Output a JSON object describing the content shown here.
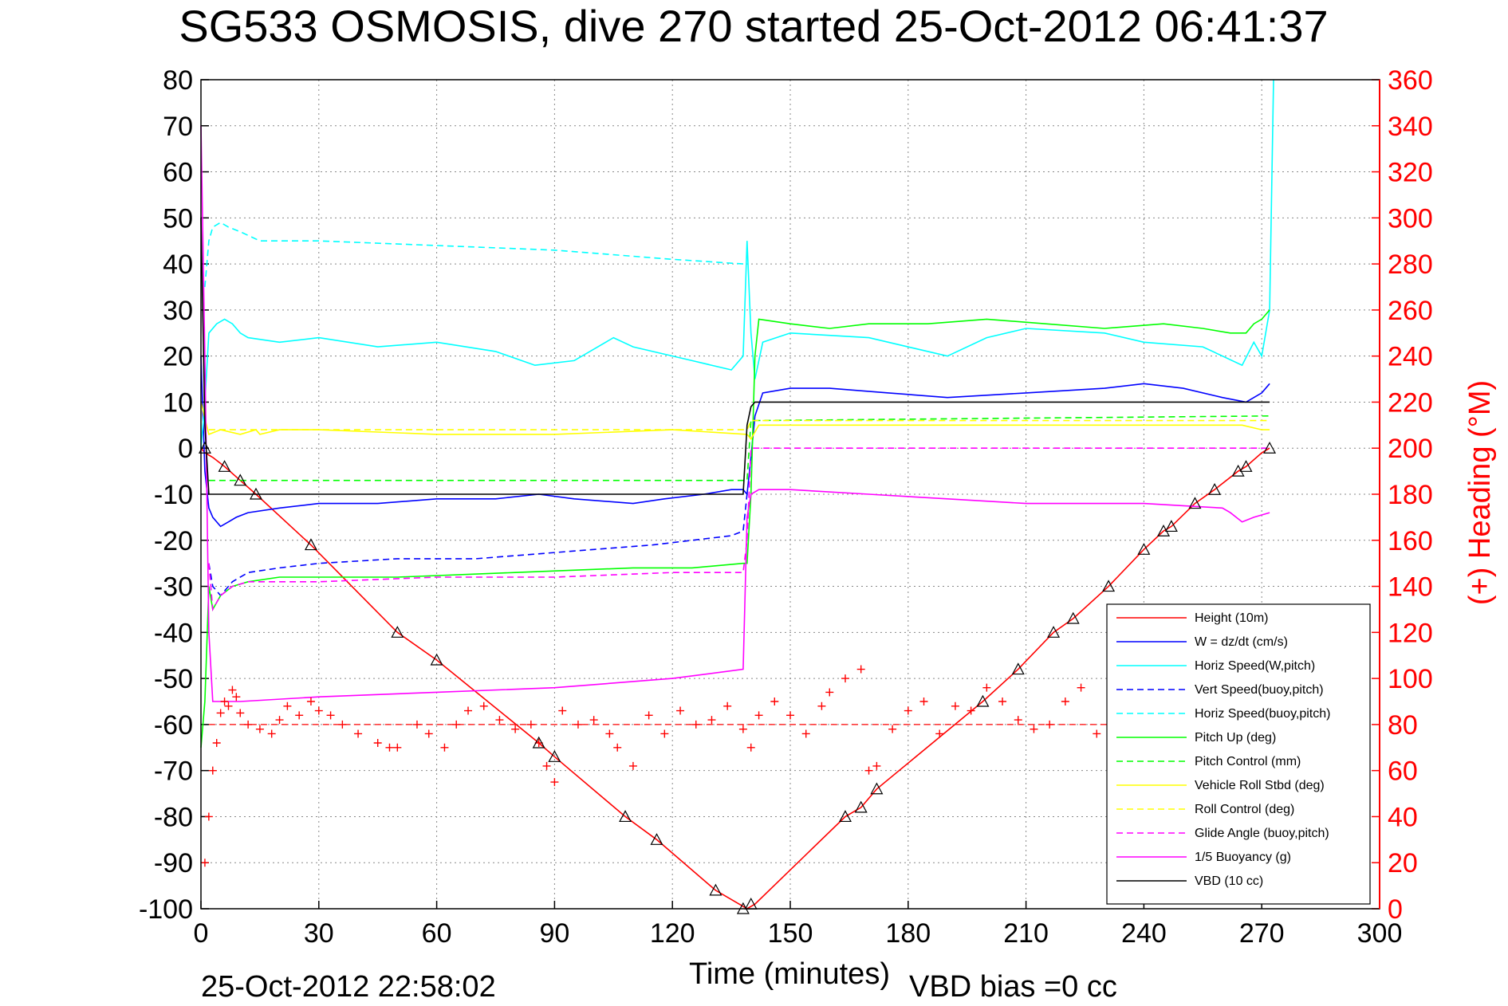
{
  "title": "SG533 OSMOSIS, dive 270 started 25-Oct-2012 06:41:37",
  "footer_date": "25-Oct-2012 22:58:02",
  "vbd_bias": "VBD bias =0 cc",
  "chart_data": {
    "type": "line",
    "xlabel": "Time (minutes)",
    "ylabel": "",
    "y2label": "(+) Heading (°M)",
    "xlim": [
      0,
      300
    ],
    "ylim": [
      -100,
      80
    ],
    "y2lim": [
      0,
      360
    ],
    "xticks": [
      0,
      30,
      60,
      90,
      120,
      150,
      180,
      210,
      240,
      270,
      300
    ],
    "yticks": [
      80,
      70,
      60,
      50,
      40,
      30,
      20,
      10,
      0,
      -10,
      -20,
      -30,
      -40,
      -50,
      -60,
      -70,
      -80,
      -90,
      -100
    ],
    "y2ticks": [
      360,
      340,
      320,
      300,
      280,
      260,
      240,
      220,
      200,
      180,
      160,
      140,
      120,
      100,
      80,
      60,
      40,
      20,
      0
    ],
    "grid": true,
    "legend_position": "lower-right",
    "colors": {
      "red": "#ff0000",
      "blue": "#0000ff",
      "cyan": "#00ffff",
      "green": "#00ff00",
      "yellow": "#ffff00",
      "magenta": "#ff00ff",
      "black": "#000000"
    },
    "series": [
      {
        "name": "Height (10m)",
        "color": "#ff0000",
        "style": "solid",
        "x": [
          0,
          1,
          3,
          6,
          10,
          14,
          28,
          50,
          60,
          86,
          90,
          108,
          116,
          131,
          137,
          139,
          141,
          164,
          168,
          172,
          199,
          208,
          217,
          222,
          231,
          240,
          245,
          247,
          253,
          258,
          264,
          266,
          270,
          272
        ],
        "y": [
          0,
          -1,
          -2,
          -4,
          -7,
          -10,
          -21,
          -40,
          -46,
          -64,
          -67,
          -80,
          -85,
          -96,
          -99,
          -100,
          -99,
          -80,
          -78,
          -74,
          -55,
          -48,
          -40,
          -37,
          -30,
          -22,
          -18,
          -17,
          -12,
          -9,
          -5,
          -4,
          -1,
          0
        ]
      },
      {
        "name": "W = dz/dt (cm/s)",
        "color": "#0000ff",
        "style": "solid",
        "x": [
          0,
          1,
          2,
          3,
          5,
          7,
          9,
          12,
          20,
          30,
          45,
          60,
          75,
          86,
          95,
          110,
          118,
          128,
          135,
          138,
          139,
          140,
          141,
          143,
          150,
          160,
          175,
          190,
          210,
          230,
          240,
          250,
          260,
          266,
          268,
          270,
          272
        ],
        "y": [
          20,
          -5,
          -13,
          -15,
          -17,
          -16,
          -15,
          -14,
          -13,
          -12,
          -12,
          -11,
          -11,
          -10,
          -11,
          -12,
          -11,
          -10,
          -9,
          -9,
          -10,
          -2,
          7,
          12,
          13,
          13,
          12,
          11,
          12,
          13,
          14,
          13,
          11,
          10,
          11,
          12,
          14
        ]
      },
      {
        "name": "Horiz Speed(W,pitch)",
        "color": "#00ffff",
        "style": "solid",
        "x": [
          0,
          1,
          2,
          4,
          6,
          8,
          10,
          12,
          20,
          30,
          45,
          60,
          75,
          85,
          95,
          105,
          110,
          125,
          135,
          138,
          139,
          140,
          141,
          143,
          150,
          170,
          190,
          200,
          210,
          230,
          240,
          255,
          265,
          268,
          270,
          272,
          273
        ],
        "y": [
          0,
          10,
          25,
          27,
          28,
          27,
          25,
          24,
          23,
          24,
          22,
          23,
          21,
          18,
          19,
          24,
          22,
          19,
          17,
          20,
          45,
          25,
          15,
          23,
          25,
          24,
          20,
          24,
          26,
          25,
          23,
          22,
          18,
          23,
          20,
          30,
          80
        ]
      },
      {
        "name": "Vert Speed(buoy,pitch)",
        "color": "#0000ff",
        "style": "dashed",
        "x": [
          2,
          3,
          5,
          8,
          12,
          20,
          30,
          50,
          70,
          85,
          100,
          115,
          125,
          135,
          138,
          139
        ],
        "y": [
          -25,
          -30,
          -32,
          -29,
          -27,
          -26,
          -25,
          -24,
          -24,
          -23,
          -22,
          -21,
          -20,
          -19,
          -18,
          -10
        ]
      },
      {
        "name": "Horiz Speed(buoy,pitch)",
        "color": "#00ffff",
        "style": "dashed",
        "x": [
          1,
          2,
          3,
          5,
          7,
          10,
          15,
          30,
          60,
          90,
          120,
          138
        ],
        "y": [
          35,
          45,
          48,
          49,
          48,
          47,
          45,
          45,
          44,
          43,
          41,
          40
        ]
      },
      {
        "name": "Pitch Up (deg)",
        "color": "#00ff00",
        "style": "solid",
        "x": [
          0,
          1,
          2,
          3,
          5,
          8,
          12,
          20,
          30,
          50,
          80,
          110,
          125,
          138,
          139,
          140,
          141,
          142,
          150,
          160,
          170,
          185,
          200,
          215,
          230,
          245,
          255,
          262,
          266,
          268,
          270,
          272
        ],
        "y": [
          -65,
          -55,
          -30,
          -35,
          -32,
          -30,
          -29,
          -28,
          -28,
          -28,
          -27,
          -26,
          -26,
          -25,
          -25,
          -10,
          20,
          28,
          27,
          26,
          27,
          27,
          28,
          27,
          26,
          27,
          26,
          25,
          25,
          27,
          28,
          30
        ]
      },
      {
        "name": "Pitch Control (mm)",
        "color": "#00ff00",
        "style": "dashed",
        "x": [
          2,
          139,
          140,
          272
        ],
        "y": [
          -7,
          -7,
          6,
          7
        ]
      },
      {
        "name": "Vehicle Roll Stbd (deg)",
        "color": "#ffff00",
        "style": "solid",
        "x": [
          0,
          2,
          5,
          10,
          14,
          15,
          20,
          30,
          60,
          90,
          120,
          139,
          140,
          142,
          160,
          200,
          240,
          265,
          270,
          272
        ],
        "y": [
          10,
          3,
          4,
          3,
          4,
          3,
          4,
          4,
          3,
          3,
          4,
          3,
          2,
          5,
          5,
          5,
          5,
          5,
          4,
          4
        ]
      },
      {
        "name": "Roll Control (deg)",
        "color": "#ffff00",
        "style": "dashed",
        "x": [
          2,
          139,
          140,
          272
        ],
        "y": [
          4,
          4,
          6,
          6
        ]
      },
      {
        "name": "Glide Angle (buoy,pitch)",
        "color": "#ff00ff",
        "style": "dashed",
        "x": [
          2,
          3,
          5,
          8,
          12,
          20,
          30,
          60,
          90,
          120,
          138,
          139,
          140,
          272
        ],
        "y": [
          -25,
          -35,
          -32,
          -30,
          -29,
          -29,
          -29,
          -28,
          -28,
          -27,
          -27,
          -20,
          0,
          0
        ]
      },
      {
        "name": "1/5 Buoyancy (g)",
        "color": "#ff00ff",
        "style": "solid",
        "x": [
          0,
          1,
          2,
          3,
          4,
          6,
          10,
          30,
          60,
          90,
          120,
          138,
          139,
          140,
          142,
          150,
          170,
          190,
          210,
          240,
          260,
          262,
          265,
          268,
          272
        ],
        "y": [
          70,
          20,
          -40,
          -55,
          -55,
          -55,
          -55,
          -54,
          -53,
          -52,
          -50,
          -48,
          -15,
          -10,
          -9,
          -9,
          -10,
          -11,
          -12,
          -12,
          -13,
          -14,
          -16,
          -15,
          -14
        ]
      },
      {
        "name": "VBD (10 cc)",
        "color": "#000000",
        "style": "solid",
        "x": [
          0,
          1,
          2,
          138,
          139,
          140,
          141,
          272
        ],
        "y": [
          50,
          5,
          -10,
          -10,
          5,
          9,
          10,
          10
        ]
      }
    ],
    "heading_points_deg": {
      "marker": "+",
      "color": "#ff0000",
      "x": [
        1,
        2,
        3,
        4,
        5,
        6,
        7,
        8,
        9,
        10,
        12,
        15,
        18,
        20,
        22,
        25,
        28,
        30,
        33,
        36,
        40,
        45,
        48,
        50,
        55,
        58,
        62,
        65,
        68,
        72,
        76,
        80,
        84,
        86,
        88,
        90,
        92,
        96,
        100,
        104,
        106,
        110,
        114,
        118,
        122,
        126,
        130,
        134,
        138,
        140,
        142,
        146,
        150,
        154,
        158,
        160,
        164,
        168,
        170,
        172,
        176,
        180,
        184,
        188,
        192,
        196,
        200,
        204,
        208,
        212,
        216,
        220,
        224,
        228,
        232,
        234
      ],
      "y": [
        20,
        40,
        60,
        72,
        85,
        90,
        88,
        95,
        92,
        85,
        80,
        78,
        76,
        82,
        88,
        84,
        90,
        86,
        84,
        80,
        76,
        72,
        70,
        70,
        80,
        76,
        70,
        80,
        86,
        88,
        82,
        78,
        80,
        72,
        62,
        55,
        86,
        80,
        82,
        76,
        70,
        62,
        84,
        76,
        86,
        80,
        82,
        88,
        78,
        70,
        84,
        90,
        84,
        76,
        88,
        94,
        100,
        104,
        60,
        62,
        78,
        86,
        90,
        76,
        88,
        86,
        96,
        90,
        82,
        78,
        80,
        90,
        96,
        76,
        84,
        96
      ]
    },
    "heading_mean_deg": 80,
    "depth_markers": {
      "marker": "triangle",
      "color": "#000000",
      "x": [
        1,
        6,
        10,
        14,
        28,
        50,
        60,
        86,
        90,
        108,
        116,
        131,
        138,
        140,
        164,
        168,
        172,
        199,
        208,
        217,
        222,
        231,
        240,
        245,
        247,
        253,
        258,
        264,
        266,
        272
      ],
      "y": [
        0,
        -4,
        -7,
        -10,
        -21,
        -40,
        -46,
        -64,
        -67,
        -80,
        -85,
        -96,
        -100,
        -99,
        -80,
        -78,
        -74,
        -55,
        -48,
        -40,
        -37,
        -30,
        -22,
        -18,
        -17,
        -12,
        -9,
        -5,
        -4,
        0
      ]
    }
  }
}
